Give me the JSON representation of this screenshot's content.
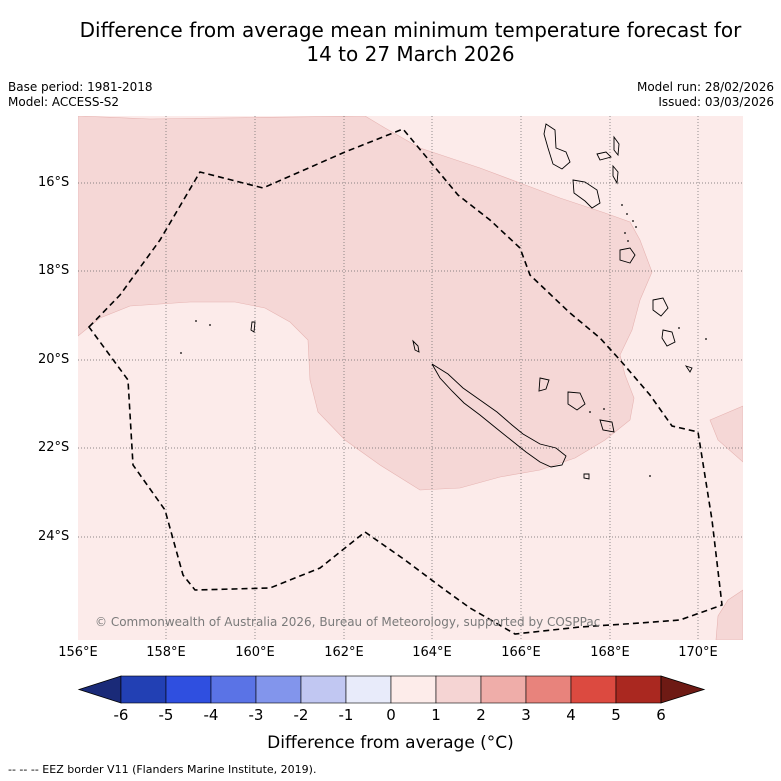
{
  "title_line1": "Difference from average mean minimum temperature forecast for",
  "title_line2": "14 to 27 March 2026",
  "base_period": "Base period: 1981-2018",
  "model": "Model: ACCESS-S2",
  "model_run": "Model run: 28/02/2026",
  "issued": "Issued: 03/03/2026",
  "lat_labels": [
    "16°S",
    "18°S",
    "20°S",
    "22°S",
    "24°S"
  ],
  "lon_labels": [
    "156°E",
    "158°E",
    "160°E",
    "162°E",
    "164°E",
    "166°E",
    "168°E",
    "170°E"
  ],
  "copyright": "© Commonwealth of Australia 2026, Bureau of Meteorology, supported by COSPPac",
  "colorbar": {
    "ticks": [
      "-6",
      "-5",
      "-4",
      "-3",
      "-2",
      "-1",
      "0",
      "1",
      "2",
      "3",
      "4",
      "5",
      "6"
    ],
    "colors": [
      "#1a2a78",
      "#2240b4",
      "#2f4fe0",
      "#5a73e6",
      "#8295ec",
      "#c1c7f2",
      "#e8ebfa",
      "#fdecea",
      "#f5d4d3",
      "#efada9",
      "#e8837c",
      "#dc4a40",
      "#aa2820",
      "#6e1a14"
    ],
    "title": "Difference from average (°C)"
  },
  "legend_text": "-- -- -- EEZ border V11 (Flanders Marine Institute, 2019)."
}
